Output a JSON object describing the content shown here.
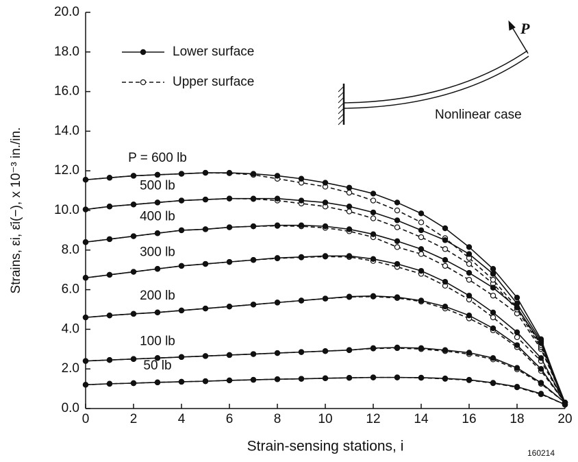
{
  "chart_data": {
    "type": "line",
    "x_label": "Strain-sensing stations, i",
    "y_label": "Strains, εi, ε̄i(−), x 10⁻³ in./in.",
    "color": "#111111",
    "x": [
      0,
      1,
      2,
      3,
      4,
      5,
      6,
      7,
      8,
      9,
      10,
      11,
      12,
      13,
      14,
      15,
      16,
      17,
      18,
      19,
      20
    ],
    "xlim": [
      0,
      20
    ],
    "ylim": [
      0,
      20
    ],
    "xticks": [
      0,
      2,
      4,
      6,
      8,
      10,
      12,
      14,
      16,
      18,
      20
    ],
    "yticks": [
      {
        "value": 0,
        "label": "0.0"
      },
      {
        "value": 2,
        "label": "2.0"
      },
      {
        "value": 4,
        "label": "4.0"
      },
      {
        "value": 6,
        "label": "6.0"
      },
      {
        "value": 8,
        "label": "8.0"
      },
      {
        "value": 10,
        "label": "10.0"
      },
      {
        "value": 12,
        "label": "12.0"
      },
      {
        "value": 14,
        "label": "14.0"
      },
      {
        "value": 16,
        "label": "16.0"
      },
      {
        "value": 18,
        "label": "18.0"
      },
      {
        "value": 20,
        "label": "20.0"
      }
    ],
    "legend": [
      {
        "name": "Lower surface",
        "line": "solid",
        "marker": "filled"
      },
      {
        "name": "Upper surface",
        "line": "dashed",
        "marker": "open"
      }
    ],
    "loads": [
      {
        "label": "50 lb",
        "series": [
          [
            1.2,
            1.25,
            1.28,
            1.32,
            1.35,
            1.38,
            1.42,
            1.45,
            1.48,
            1.5,
            1.53,
            1.55,
            1.57,
            1.57,
            1.56,
            1.52,
            1.45,
            1.3,
            1.1,
            0.75,
            0.2
          ],
          [
            1.2,
            1.25,
            1.28,
            1.32,
            1.35,
            1.38,
            1.42,
            1.45,
            1.48,
            1.5,
            1.53,
            1.55,
            1.57,
            1.57,
            1.55,
            1.5,
            1.43,
            1.28,
            1.07,
            0.72,
            0.2
          ]
        ]
      },
      {
        "label": "100 lb",
        "series": [
          [
            2.4,
            2.45,
            2.5,
            2.55,
            2.6,
            2.65,
            2.7,
            2.75,
            2.8,
            2.85,
            2.9,
            2.95,
            3.05,
            3.08,
            3.05,
            2.95,
            2.82,
            2.55,
            2.05,
            1.3,
            0.3
          ],
          [
            2.4,
            2.45,
            2.5,
            2.55,
            2.6,
            2.65,
            2.7,
            2.75,
            2.8,
            2.85,
            2.9,
            2.95,
            3.03,
            3.05,
            3.0,
            2.9,
            2.75,
            2.48,
            1.98,
            1.25,
            0.3
          ]
        ]
      },
      {
        "label": "200 lb",
        "series": [
          [
            4.6,
            4.7,
            4.78,
            4.85,
            4.95,
            5.05,
            5.15,
            5.25,
            5.35,
            5.45,
            5.55,
            5.65,
            5.68,
            5.62,
            5.45,
            5.15,
            4.7,
            4.05,
            3.2,
            2.0,
            0.3
          ],
          [
            4.6,
            4.7,
            4.78,
            4.85,
            4.95,
            5.05,
            5.15,
            5.25,
            5.35,
            5.45,
            5.55,
            5.63,
            5.65,
            5.58,
            5.4,
            5.05,
            4.55,
            3.95,
            3.1,
            1.9,
            0.3
          ]
        ]
      },
      {
        "label": "300 lb",
        "series": [
          [
            6.6,
            6.75,
            6.9,
            7.05,
            7.2,
            7.3,
            7.4,
            7.5,
            7.6,
            7.65,
            7.7,
            7.7,
            7.55,
            7.3,
            6.95,
            6.4,
            5.7,
            4.85,
            3.85,
            2.55,
            0.3
          ],
          [
            6.6,
            6.75,
            6.9,
            7.05,
            7.2,
            7.3,
            7.4,
            7.5,
            7.58,
            7.63,
            7.67,
            7.65,
            7.45,
            7.15,
            6.8,
            6.2,
            5.5,
            4.6,
            3.6,
            2.4,
            0.3
          ]
        ]
      },
      {
        "label": "400 lb",
        "series": [
          [
            8.4,
            8.55,
            8.7,
            8.85,
            9.0,
            9.05,
            9.15,
            9.2,
            9.25,
            9.25,
            9.2,
            9.05,
            8.8,
            8.45,
            8.05,
            7.5,
            6.85,
            6.1,
            5.1,
            3.3,
            0.3
          ],
          [
            8.4,
            8.55,
            8.7,
            8.85,
            9.0,
            9.05,
            9.15,
            9.2,
            9.22,
            9.2,
            9.12,
            8.95,
            8.65,
            8.15,
            7.8,
            7.2,
            6.5,
            5.7,
            4.8,
            3.0,
            0.3
          ]
        ]
      },
      {
        "label": "500 lb",
        "series": [
          [
            10.05,
            10.2,
            10.3,
            10.4,
            10.5,
            10.55,
            10.6,
            10.6,
            10.6,
            10.5,
            10.4,
            10.2,
            9.9,
            9.5,
            9.0,
            8.5,
            7.8,
            6.8,
            5.3,
            3.4,
            0.3
          ],
          [
            10.05,
            10.2,
            10.3,
            10.4,
            10.5,
            10.55,
            10.6,
            10.58,
            10.5,
            10.35,
            10.2,
            9.95,
            9.6,
            9.15,
            8.65,
            8.05,
            7.3,
            6.3,
            5.0,
            3.1,
            0.3
          ]
        ]
      },
      {
        "label": "P = 600 lb",
        "series": [
          [
            11.55,
            11.65,
            11.75,
            11.8,
            11.85,
            11.9,
            11.9,
            11.85,
            11.75,
            11.6,
            11.4,
            11.15,
            10.85,
            10.4,
            9.85,
            9.1,
            8.15,
            7.05,
            5.6,
            3.5,
            0.2
          ],
          [
            11.55,
            11.65,
            11.75,
            11.8,
            11.85,
            11.9,
            11.88,
            11.8,
            11.6,
            11.4,
            11.2,
            10.9,
            10.5,
            10.0,
            9.4,
            8.6,
            7.6,
            6.5,
            5.1,
            3.2,
            0.2
          ]
        ]
      }
    ],
    "annotations": {
      "force": "P",
      "case": "Nonlinear case"
    },
    "figure_id": "160214"
  }
}
